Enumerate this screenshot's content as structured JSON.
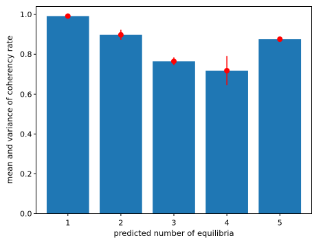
{
  "chart_data": {
    "type": "bar",
    "title": "",
    "xlabel": "predicted number of equilibria",
    "ylabel": "mean and variance of coherency rate",
    "categories": [
      "1",
      "2",
      "3",
      "4",
      "5"
    ],
    "values": [
      0.992,
      0.898,
      0.765,
      0.718,
      0.876
    ],
    "error_points": [
      0.992,
      0.898,
      0.765,
      0.718,
      0.876
    ],
    "error_bars": [
      0.006,
      0.025,
      0.02,
      0.073,
      0.007
    ],
    "ylim": [
      0,
      1.04
    ],
    "yticks": [
      0.0,
      0.2,
      0.4,
      0.6,
      0.8,
      1.0
    ],
    "ytick_labels": [
      "0.0",
      "0.2",
      "0.4",
      "0.6",
      "0.8",
      "1.0"
    ],
    "grid": false,
    "colors": {
      "bar": "#1f77b4",
      "error": "#ff0000",
      "axis": "#000000"
    }
  }
}
